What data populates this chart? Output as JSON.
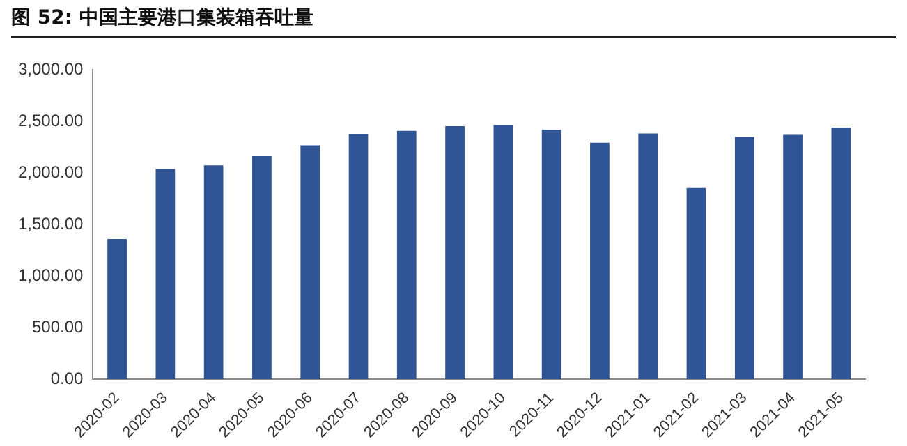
{
  "chart_data": {
    "type": "bar",
    "title": "图 52: 中国主要港口集装箱吞吐量",
    "categories": [
      "2020-02",
      "2020-03",
      "2020-04",
      "2020-05",
      "2020-06",
      "2020-07",
      "2020-08",
      "2020-09",
      "2020-10",
      "2020-11",
      "2020-12",
      "2021-01",
      "2021-02",
      "2021-03",
      "2021-04",
      "2021-05"
    ],
    "values": [
      1360,
      2040,
      2075,
      2165,
      2270,
      2380,
      2410,
      2455,
      2465,
      2420,
      2295,
      2385,
      1855,
      2350,
      2370,
      2440
    ],
    "color": "#2f5597",
    "ylim": [
      0,
      3000
    ],
    "yticks": [
      {
        "value": 0,
        "label": "0.00"
      },
      {
        "value": 500,
        "label": "500.00"
      },
      {
        "value": 1000,
        "label": "1,000.00"
      },
      {
        "value": 1500,
        "label": "1,500.00"
      },
      {
        "value": 2000,
        "label": "2,000.00"
      },
      {
        "value": 2500,
        "label": "2,500.00"
      },
      {
        "value": 3000,
        "label": "3,000.00"
      }
    ],
    "grid": false,
    "legend": false
  }
}
